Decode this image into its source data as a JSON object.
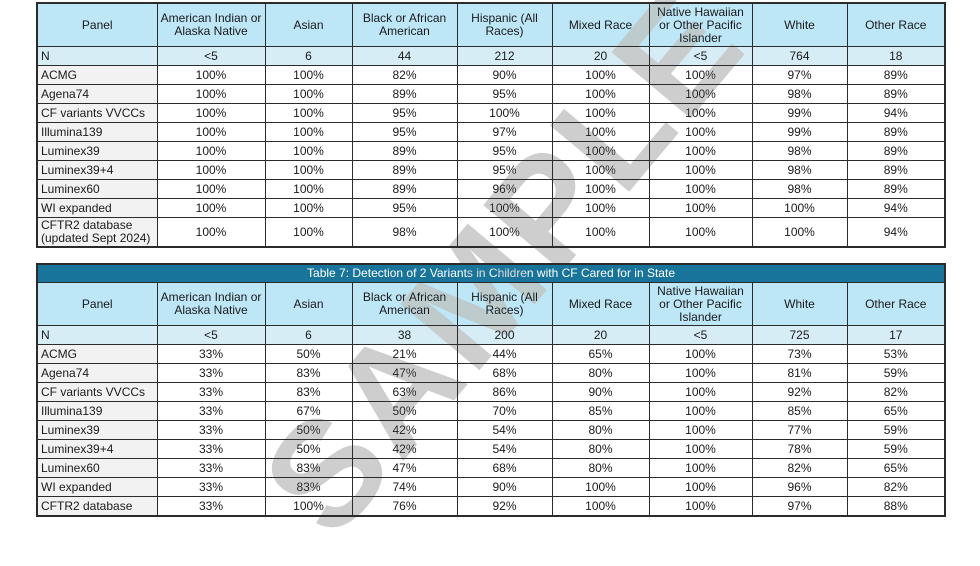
{
  "watermark": "SAMPLE",
  "colors": {
    "title_bar": "#19749C",
    "header_cell": "#BDE6F7",
    "n_row": "#D7EDF6",
    "panel_cell": "#F2F2F2",
    "border": "#2b2b2b",
    "watermark_gray": "#c6c6c6"
  },
  "columns": [
    "Panel",
    "American Indian or Alaska Native",
    "Asian",
    "Black or African American",
    "Hispanic (All Races)",
    "Mixed Race",
    "Native Hawaiian or Other Pacific Islander",
    "White",
    "Other Race"
  ],
  "table_top": {
    "n_row": {
      "label": "N",
      "values": [
        "<5",
        "6",
        "44",
        "212",
        "20",
        "<5",
        "764",
        "18"
      ]
    },
    "rows": [
      {
        "panel": "ACMG",
        "values": [
          "100%",
          "100%",
          "82%",
          "90%",
          "100%",
          "100%",
          "97%",
          "89%"
        ]
      },
      {
        "panel": "Agena74",
        "values": [
          "100%",
          "100%",
          "89%",
          "95%",
          "100%",
          "100%",
          "98%",
          "89%"
        ]
      },
      {
        "panel": "CF variants VVCCs",
        "values": [
          "100%",
          "100%",
          "95%",
          "100%",
          "100%",
          "100%",
          "99%",
          "94%"
        ]
      },
      {
        "panel": "Illumina139",
        "values": [
          "100%",
          "100%",
          "95%",
          "97%",
          "100%",
          "100%",
          "99%",
          "89%"
        ]
      },
      {
        "panel": "Luminex39",
        "values": [
          "100%",
          "100%",
          "89%",
          "95%",
          "100%",
          "100%",
          "98%",
          "89%"
        ]
      },
      {
        "panel": "Luminex39+4",
        "values": [
          "100%",
          "100%",
          "89%",
          "95%",
          "100%",
          "100%",
          "98%",
          "89%"
        ]
      },
      {
        "panel": "Luminex60",
        "values": [
          "100%",
          "100%",
          "89%",
          "96%",
          "100%",
          "100%",
          "98%",
          "89%"
        ]
      },
      {
        "panel": "WI expanded",
        "values": [
          "100%",
          "100%",
          "95%",
          "100%",
          "100%",
          "100%",
          "100%",
          "94%"
        ]
      },
      {
        "panel": "CFTR2 database (updated Sept 2024)",
        "values": [
          "100%",
          "100%",
          "98%",
          "100%",
          "100%",
          "100%",
          "100%",
          "94%"
        ]
      }
    ]
  },
  "table_bottom": {
    "title": "Table 7: Detection of 2 Variants in Children with CF Cared for in State",
    "n_row": {
      "label": "N",
      "values": [
        "<5",
        "6",
        "38",
        "200",
        "20",
        "<5",
        "725",
        "17"
      ]
    },
    "rows": [
      {
        "panel": "ACMG",
        "values": [
          "33%",
          "50%",
          "21%",
          "44%",
          "65%",
          "100%",
          "73%",
          "53%"
        ]
      },
      {
        "panel": "Agena74",
        "values": [
          "33%",
          "83%",
          "47%",
          "68%",
          "80%",
          "100%",
          "81%",
          "59%"
        ]
      },
      {
        "panel": "CF variants VVCCs",
        "values": [
          "33%",
          "83%",
          "63%",
          "86%",
          "90%",
          "100%",
          "92%",
          "82%"
        ]
      },
      {
        "panel": "Illumina139",
        "values": [
          "33%",
          "67%",
          "50%",
          "70%",
          "85%",
          "100%",
          "85%",
          "65%"
        ]
      },
      {
        "panel": "Luminex39",
        "values": [
          "33%",
          "50%",
          "42%",
          "54%",
          "80%",
          "100%",
          "77%",
          "59%"
        ]
      },
      {
        "panel": "Luminex39+4",
        "values": [
          "33%",
          "50%",
          "42%",
          "54%",
          "80%",
          "100%",
          "78%",
          "59%"
        ]
      },
      {
        "panel": "Luminex60",
        "values": [
          "33%",
          "83%",
          "47%",
          "68%",
          "80%",
          "100%",
          "82%",
          "65%"
        ]
      },
      {
        "panel": "WI expanded",
        "values": [
          "33%",
          "83%",
          "74%",
          "90%",
          "100%",
          "100%",
          "96%",
          "82%"
        ]
      },
      {
        "panel": "CFTR2 database",
        "values": [
          "33%",
          "100%",
          "76%",
          "92%",
          "100%",
          "100%",
          "97%",
          "88%"
        ]
      }
    ]
  }
}
